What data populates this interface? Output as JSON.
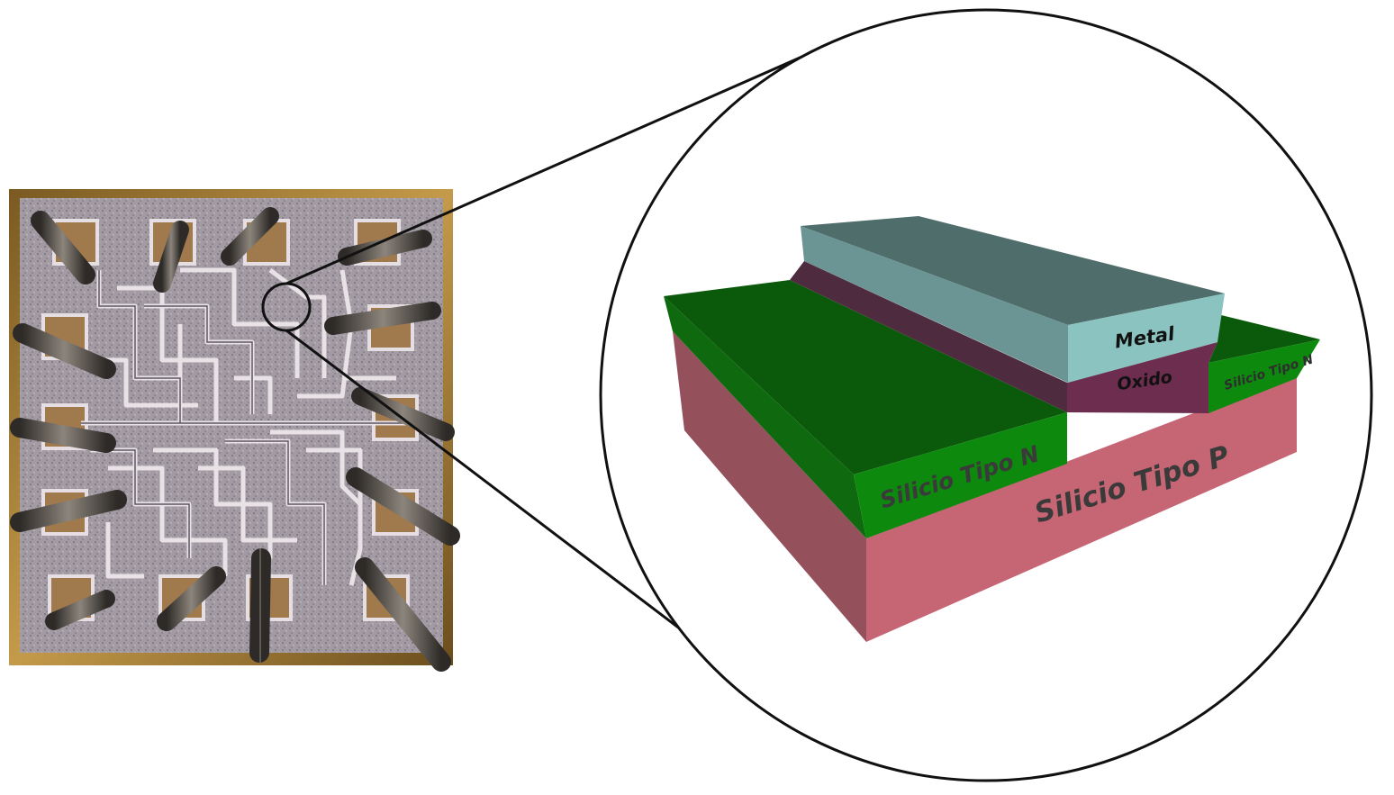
{
  "figure": {
    "labels": {
      "metal": "Metal",
      "oxide": "Oxido",
      "n_left": "Silicio Tipo N",
      "n_right": "Silicio Tipo N",
      "p": "Silicio Tipo P"
    },
    "colors": {
      "metal_top": "#6b9594",
      "metal_front": "#8bc3c1",
      "metal_side": "#4f6d6b",
      "oxide_front": "#6d2d4f",
      "oxide_side": "#4f2b3f",
      "n_top": "#0b5a0b",
      "n_front": "#0d8a0d",
      "n_side": "#0f6a0f",
      "p_front": "#c66674",
      "p_side": "#94505b",
      "label_text": "#2a2a2a",
      "outline": "#111111",
      "die_frame": "#b0833a",
      "die_surface": "#8a7f8c"
    },
    "die_photo": {
      "description_icon": "chip-die-photo"
    }
  }
}
